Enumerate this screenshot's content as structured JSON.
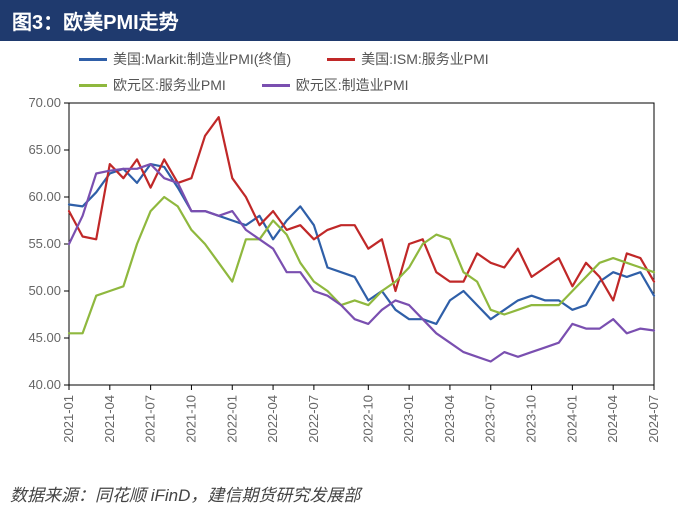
{
  "title": "图3：欧美PMI走势",
  "source": "数据来源：同花顺 iFinD，建信期货研究发展部",
  "chart": {
    "type": "line",
    "background_color": "#ffffff",
    "axis_color": "#000000",
    "text_color": "#666666",
    "ylim": [
      40,
      70
    ],
    "ytick_step": 5,
    "yticks": [
      "40.00",
      "45.00",
      "50.00",
      "55.00",
      "60.00",
      "65.00",
      "70.00"
    ],
    "x_categories": [
      "2021-01",
      "2021-04",
      "2021-07",
      "2021-10",
      "2022-01",
      "2022-04",
      "2022-07",
      "2022-10",
      "2023-01",
      "2023-04",
      "2023-07",
      "2023-10",
      "2024-01",
      "2024-04",
      "2024-07"
    ],
    "line_width": 2.2,
    "legend_fontsize": 14,
    "axis_fontsize": 13,
    "series": [
      {
        "name": "美国:Markit:制造业PMI(终值)",
        "color": "#2f5fa8",
        "values": [
          59.2,
          59.0,
          60.5,
          62.5,
          63.0,
          61.5,
          63.5,
          63.2,
          61.0,
          58.5,
          58.5,
          58.0,
          57.5,
          57.0,
          58.0,
          55.5,
          57.5,
          59.0,
          57.0,
          52.5,
          52.0,
          51.5,
          49.0,
          50.0,
          48.0,
          47.0,
          47.0,
          46.5,
          49.0,
          50.0,
          48.5,
          47.0,
          48.0,
          49.0,
          49.5,
          49.0,
          49.0,
          48.0,
          48.5,
          51.0,
          52.0,
          51.5,
          52.0,
          49.5
        ]
      },
      {
        "name": "美国:ISM:服务业PMI",
        "color": "#c02828",
        "values": [
          58.5,
          55.8,
          55.5,
          63.5,
          62.0,
          64.0,
          61.0,
          64.0,
          61.5,
          62.0,
          66.5,
          68.5,
          62.0,
          60.0,
          57.0,
          58.5,
          56.5,
          57.0,
          55.5,
          56.5,
          57.0,
          57.0,
          54.5,
          55.5,
          50.0,
          55.0,
          55.5,
          52.0,
          51.0,
          51.0,
          54.0,
          53.0,
          52.5,
          54.5,
          51.5,
          52.5,
          53.5,
          50.5,
          53.0,
          51.5,
          49.0,
          54.0,
          53.5,
          51.0
        ]
      },
      {
        "name": "欧元区:服务业PMI",
        "color": "#8fb83e",
        "values": [
          45.5,
          45.5,
          49.5,
          50.0,
          50.5,
          55.0,
          58.5,
          60.0,
          59.0,
          56.5,
          55.0,
          53.0,
          51.0,
          55.5,
          55.5,
          57.5,
          56.0,
          53.0,
          51.0,
          50.0,
          48.5,
          49.0,
          48.5,
          50.0,
          51.0,
          52.5,
          55.0,
          56.0,
          55.5,
          52.0,
          51.0,
          48.0,
          47.5,
          48.0,
          48.5,
          48.5,
          48.5,
          50.0,
          51.5,
          53.0,
          53.5,
          53.0,
          52.5,
          52.0
        ]
      },
      {
        "name": "欧元区:制造业PMI",
        "color": "#7a4fb0",
        "values": [
          55.0,
          58.0,
          62.5,
          62.8,
          63.0,
          63.0,
          63.5,
          62.0,
          61.5,
          58.5,
          58.5,
          58.0,
          58.5,
          56.5,
          55.5,
          54.5,
          52.0,
          52.0,
          50.0,
          49.5,
          48.5,
          47.0,
          46.5,
          48.0,
          49.0,
          48.5,
          47.0,
          45.5,
          44.5,
          43.5,
          43.0,
          42.5,
          43.5,
          43.0,
          43.5,
          44.0,
          44.5,
          46.5,
          46.0,
          46.0,
          47.0,
          45.5,
          46.0,
          45.8
        ]
      }
    ]
  }
}
